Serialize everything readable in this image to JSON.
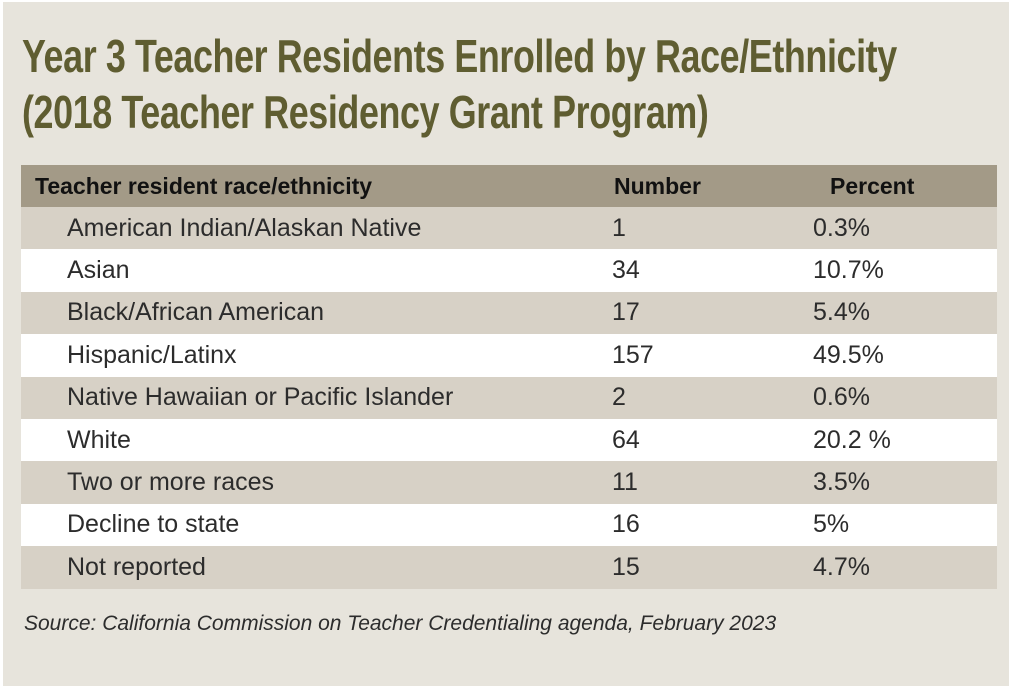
{
  "title": {
    "line1": "Year 3 Teacher Residents Enrolled by Race/Ethnicity",
    "line2": "(2018 Teacher Residency Grant Program)"
  },
  "table": {
    "headers": [
      "Teacher resident race/ethnicity",
      "Number",
      "Percent"
    ],
    "rows": [
      [
        "American Indian/Alaskan Native",
        "1",
        "0.3%"
      ],
      [
        "Asian",
        "34",
        "10.7%"
      ],
      [
        "Black/African American",
        "17",
        "5.4%"
      ],
      [
        "Hispanic/Latinx",
        "157",
        "49.5%"
      ],
      [
        "Native Hawaiian or Pacific Islander",
        "2",
        "0.6%"
      ],
      [
        "White",
        "64",
        "20.2 %"
      ],
      [
        "Two or more races",
        "11",
        "3.5%"
      ],
      [
        "Decline to state",
        "16",
        "5%"
      ],
      [
        "Not reported",
        "15",
        "4.7%"
      ]
    ]
  },
  "source": "Source: California Commission on Teacher Credentialing agenda, February 2023",
  "colors": {
    "background": "#e7e4dc",
    "title": "#5f5d31",
    "header_row": "#a39a87",
    "odd_row": "#d7d1c6",
    "even_row": "#ffffff"
  }
}
